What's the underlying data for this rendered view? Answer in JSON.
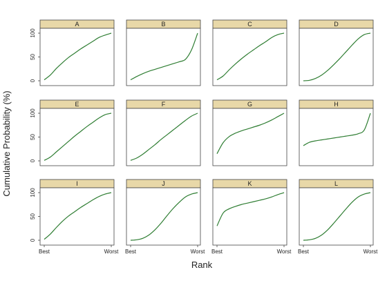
{
  "chart_data": {
    "type": "line",
    "ylabel": "Cumulative Probability (%)",
    "xlabel": "Rank",
    "x_tick_labels": [
      "Best",
      "Worst"
    ],
    "y_ticks": [
      0,
      50,
      100
    ],
    "ylim": [
      0,
      100
    ],
    "grid": false,
    "colors": {
      "line": "#2e7d32",
      "strip": "#e8d8a8"
    },
    "x": [
      1,
      2,
      3,
      4,
      5,
      6,
      7,
      8,
      9,
      10,
      11,
      12
    ],
    "panels": [
      {
        "label": "A",
        "values": [
          2,
          12,
          26,
          38,
          49,
          58,
          67,
          75,
          83,
          91,
          96,
          100
        ]
      },
      {
        "label": "B",
        "values": [
          2,
          9,
          15,
          20,
          24,
          28,
          32,
          36,
          40,
          45,
          65,
          100
        ]
      },
      {
        "label": "C",
        "values": [
          2,
          10,
          23,
          35,
          46,
          56,
          65,
          74,
          82,
          91,
          97,
          100
        ]
      },
      {
        "label": "D",
        "values": [
          0,
          1,
          5,
          12,
          22,
          34,
          47,
          61,
          75,
          88,
          97,
          100
        ]
      },
      {
        "label": "E",
        "values": [
          1,
          8,
          19,
          30,
          41,
          52,
          62,
          72,
          81,
          90,
          97,
          100
        ]
      },
      {
        "label": "F",
        "values": [
          1,
          6,
          14,
          24,
          34,
          45,
          55,
          65,
          75,
          85,
          94,
          100
        ]
      },
      {
        "label": "G",
        "values": [
          15,
          38,
          51,
          58,
          63,
          67,
          71,
          75,
          80,
          86,
          93,
          100
        ]
      },
      {
        "label": "H",
        "values": [
          32,
          39,
          42,
          44,
          46,
          48,
          50,
          52,
          54,
          57,
          65,
          100
        ]
      },
      {
        "label": "I",
        "values": [
          2,
          13,
          27,
          40,
          51,
          60,
          69,
          77,
          85,
          92,
          97,
          100
        ]
      },
      {
        "label": "J",
        "values": [
          0,
          1,
          4,
          11,
          22,
          36,
          52,
          67,
          80,
          91,
          97,
          100
        ]
      },
      {
        "label": "K",
        "values": [
          30,
          57,
          66,
          71,
          75,
          78,
          81,
          84,
          87,
          91,
          96,
          100
        ]
      },
      {
        "label": "L",
        "values": [
          0,
          1,
          4,
          11,
          22,
          36,
          51,
          66,
          80,
          91,
          97,
          100
        ]
      }
    ]
  }
}
